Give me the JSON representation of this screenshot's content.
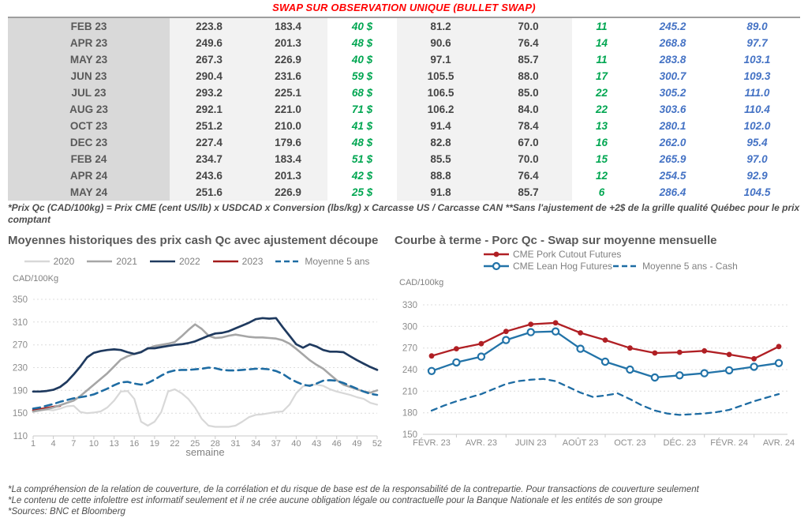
{
  "title": "SWAP SUR OBSERVATION UNIQUE (BULLET SWAP)",
  "colors": {
    "title_red": "#FF0000",
    "table_green": "#00A651",
    "table_blue": "#4472C4",
    "series_2020": "#D8D8D8",
    "series_2021": "#A6A6A6",
    "series_2022": "#1F3A5F",
    "series_2023": "#A31C1C",
    "series_avg5": "#1E6CA3",
    "pork_red": "#B01F24",
    "leanhog_blue": "#2273A8"
  },
  "table": {
    "rows": [
      [
        "FEB 23",
        "223.8",
        "183.4",
        "40 $",
        "81.2",
        "70.0",
        "11",
        "245.2",
        "89.0"
      ],
      [
        "APR 23",
        "249.6",
        "201.3",
        "48 $",
        "90.6",
        "76.4",
        "14",
        "268.8",
        "97.7"
      ],
      [
        "MAY 23",
        "267.3",
        "226.9",
        "40 $",
        "97.1",
        "85.7",
        "11",
        "283.8",
        "103.1"
      ],
      [
        "JUN 23",
        "290.4",
        "231.6",
        "59 $",
        "105.5",
        "88.0",
        "17",
        "300.7",
        "109.3"
      ],
      [
        "JUL 23",
        "293.2",
        "225.1",
        "68 $",
        "106.5",
        "85.0",
        "22",
        "305.2",
        "111.0"
      ],
      [
        "AUG 23",
        "292.1",
        "221.0",
        "71 $",
        "106.2",
        "84.0",
        "22",
        "303.6",
        "110.4"
      ],
      [
        "OCT 23",
        "251.2",
        "210.0",
        "41 $",
        "91.4",
        "78.4",
        "13",
        "280.1",
        "102.0"
      ],
      [
        "DEC 23",
        "227.4",
        "179.6",
        "48 $",
        "82.8",
        "67.0",
        "16",
        "262.0",
        "95.4"
      ],
      [
        "FEB 24",
        "234.7",
        "183.4",
        "51 $",
        "85.5",
        "70.0",
        "15",
        "265.9",
        "97.0"
      ],
      [
        "APR 24",
        "243.6",
        "201.3",
        "42 $",
        "88.8",
        "76.4",
        "12",
        "254.5",
        "92.9"
      ],
      [
        "MAY 24",
        "251.6",
        "226.9",
        "25 $",
        "91.8",
        "85.7",
        "6",
        "286.4",
        "104.5"
      ]
    ]
  },
  "table_footnote": "*Prix Qc (CAD/100kg) = Prix CME (cent US/lb) x USDCAD x Conversion (lbs/kg) x Carcasse US / Carcasse CAN **Sans l'ajustement de +2$ de la grille qualité Québec pour le prix comptant",
  "chart_data": [
    {
      "type": "line",
      "title": "Moyennes historiques des prix cash Qc avec ajustement découpe",
      "y_unit": "CAD/100Kg",
      "x_title": "semaine",
      "x_range": [
        1,
        52
      ],
      "y_range": [
        110,
        350
      ],
      "y_ticks": [
        110,
        150,
        190,
        230,
        270,
        310,
        350
      ],
      "x_start": 1,
      "tick_pos": [
        1,
        4,
        7,
        10,
        13,
        16,
        19,
        22,
        25,
        28,
        31,
        34,
        37,
        40,
        43,
        46,
        49,
        52
      ],
      "x_ticks": [
        {
          "pos": 1,
          "label": "1"
        },
        {
          "pos": 4,
          "label": "4"
        },
        {
          "pos": 7,
          "label": "7"
        },
        {
          "pos": 10,
          "label": "10"
        },
        {
          "pos": 13,
          "label": "13"
        },
        {
          "pos": 16,
          "label": "16"
        },
        {
          "pos": 19,
          "label": "19"
        },
        {
          "pos": 22,
          "label": "22"
        },
        {
          "pos": 25,
          "label": "25"
        },
        {
          "pos": 28,
          "label": "28"
        },
        {
          "pos": 31,
          "label": "31"
        },
        {
          "pos": 34,
          "label": "34"
        },
        {
          "pos": 37,
          "label": "37"
        },
        {
          "pos": 40,
          "label": "40"
        },
        {
          "pos": 43,
          "label": "43"
        },
        {
          "pos": 46,
          "label": "46"
        },
        {
          "pos": 49,
          "label": "49"
        },
        {
          "pos": 52,
          "label": "52"
        }
      ],
      "series": [
        {
          "name": "2020",
          "color": "#D8D8D8",
          "width": 2.2,
          "values": [
            152,
            155,
            156,
            155,
            158,
            162,
            163,
            152,
            150,
            151,
            153,
            160,
            172,
            188,
            189,
            175,
            135,
            128,
            135,
            152,
            188,
            192,
            185,
            175,
            160,
            140,
            128,
            126,
            126,
            126,
            128,
            135,
            143,
            147,
            148,
            150,
            152,
            153,
            165,
            185,
            197,
            200,
            200,
            198,
            192,
            188,
            185,
            182,
            178,
            175,
            168,
            165
          ]
        },
        {
          "name": "2021",
          "color": "#A6A6A6",
          "width": 2.6,
          "values": [
            153,
            155,
            157,
            160,
            164,
            168,
            172,
            180,
            190,
            200,
            210,
            220,
            232,
            244,
            250,
            254,
            258,
            263,
            268,
            270,
            272,
            275,
            285,
            296,
            306,
            298,
            286,
            282,
            283,
            286,
            288,
            286,
            284,
            283,
            283,
            282,
            281,
            278,
            272,
            263,
            253,
            243,
            235,
            228,
            218,
            208,
            200,
            196,
            192,
            188,
            186,
            190
          ]
        },
        {
          "name": "2022",
          "color": "#1F3A5F",
          "width": 2.7,
          "values": [
            188,
            188,
            189,
            191,
            196,
            205,
            218,
            232,
            248,
            256,
            259,
            261,
            262,
            261,
            257,
            254,
            257,
            264,
            264,
            266,
            268,
            270,
            271,
            273,
            276,
            281,
            286,
            290,
            291,
            294,
            299,
            304,
            309,
            315,
            317,
            316,
            317,
            301,
            286,
            271,
            265,
            271,
            267,
            261,
            258,
            258,
            257,
            250,
            243,
            237,
            231,
            226
          ]
        },
        {
          "name": "2023",
          "color": "#A31C1C",
          "width": 2.6,
          "values": [
            155,
            157,
            159,
            161,
            163
          ]
        },
        {
          "name": "Moyenne 5 ans",
          "color": "#1E6CA3",
          "width": 2.6,
          "dash": "9 6",
          "values": [
            158,
            160,
            163,
            166,
            170,
            173,
            176,
            178,
            180,
            183,
            188,
            193,
            199,
            204,
            205,
            202,
            200,
            203,
            209,
            216,
            222,
            225,
            226,
            226,
            227,
            228,
            230,
            229,
            226,
            225,
            225,
            226,
            227,
            228,
            228,
            227,
            224,
            219,
            211,
            205,
            200,
            198,
            202,
            207,
            208,
            207,
            203,
            198,
            193,
            188,
            184,
            182
          ]
        }
      ]
    },
    {
      "type": "line",
      "title": "Courbe à terme - Porc Qc - Swap sur moyenne mensuelle",
      "y_unit": "CAD/100kg",
      "x_range": [
        -0.35,
        14.35
      ],
      "y_range": [
        150,
        330
      ],
      "y_ticks": [
        150,
        180,
        210,
        240,
        270,
        300,
        330
      ],
      "x_start": 0,
      "tick_pos": [
        1,
        3,
        5,
        7,
        9,
        11,
        13
      ],
      "x_ticks": [
        {
          "pos": 0,
          "label": "FÉVR. 23"
        },
        {
          "pos": 2,
          "label": "AVR. 23"
        },
        {
          "pos": 4,
          "label": "JUIN 23"
        },
        {
          "pos": 6,
          "label": "AOÛT 23"
        },
        {
          "pos": 8,
          "label": "OCT. 23"
        },
        {
          "pos": 10,
          "label": "DÉC. 23"
        },
        {
          "pos": 12,
          "label": "FÉVR. 24"
        },
        {
          "pos": 14,
          "label": "AVR. 24"
        }
      ],
      "series": [
        {
          "name": "CME Pork Cutout Futures",
          "color": "#B01F24",
          "width": 2.3,
          "marker": "dot",
          "values": [
            259,
            269,
            276,
            293,
            303,
            305,
            291,
            281,
            270,
            263,
            264,
            266,
            261,
            255,
            272
          ]
        },
        {
          "name": "CME Lean Hog Futures",
          "color": "#2273A8",
          "width": 2.3,
          "marker": "circle",
          "values": [
            238,
            250,
            258,
            281,
            292,
            293,
            269,
            251,
            240,
            229,
            232,
            235,
            239,
            244,
            249
          ]
        },
        {
          "name": "Moyenne 5 ans - Cash",
          "color": "#1E6CA3",
          "width": 2.3,
          "dash": "7 6",
          "points": [
            [
              0,
              183
            ],
            [
              0.5,
              190
            ],
            [
              1,
              196
            ],
            [
              1.5,
              201
            ],
            [
              2,
              206
            ],
            [
              2.5,
              213
            ],
            [
              3,
              220
            ],
            [
              3.5,
              224
            ],
            [
              4,
              226
            ],
            [
              4.5,
              227
            ],
            [
              5,
              224
            ],
            [
              5.5,
              216
            ],
            [
              6,
              208
            ],
            [
              6.5,
              202
            ],
            [
              7,
              204
            ],
            [
              7.5,
              207
            ],
            [
              8,
              199
            ],
            [
              8.5,
              190
            ],
            [
              9,
              183
            ],
            [
              9.5,
              179
            ],
            [
              10,
              177
            ],
            [
              10.5,
              178
            ],
            [
              11,
              179
            ],
            [
              11.5,
              181
            ],
            [
              12,
              184
            ],
            [
              12.5,
              190
            ],
            [
              13,
              196
            ],
            [
              13.5,
              201
            ],
            [
              14,
              206
            ]
          ]
        }
      ]
    }
  ],
  "footer_notes": [
    "*La compréhension de la relation de couverture, de la corrélation et du risque de base est de la responsabilité de la contrepartie. Pour transactions de couverture seulement",
    "*Le contenu de cette infolettre est informatif seulement et il ne crée aucune obligation légale ou contractuelle pour la Banque Nationale et les entités de son groupe",
    "*Sources: BNC et Bloomberg"
  ]
}
